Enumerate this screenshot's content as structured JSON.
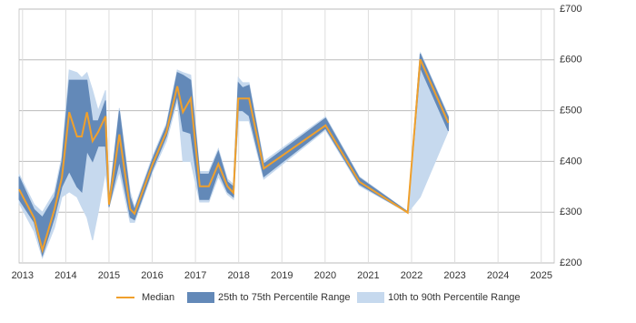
{
  "chart_data": {
    "type": "range-line",
    "x": [
      2012.92,
      2013.27,
      2013.46,
      2013.74,
      2013.91,
      2014.08,
      2014.26,
      2014.37,
      2014.49,
      2014.62,
      2014.75,
      2014.92,
      2015.0,
      2015.24,
      2015.49,
      2015.59,
      2016.01,
      2016.33,
      2016.58,
      2016.71,
      2016.89,
      2017.1,
      2017.31,
      2017.53,
      2017.74,
      2017.88,
      2017.99,
      2018.09,
      2018.24,
      2018.58,
      2020.01,
      2020.79,
      2021.91,
      2022.2,
      2022.85
    ],
    "series": [
      {
        "name": "10th to 90th Percentile Range",
        "color": "#c6d9ee",
        "lower": [
          318,
          262,
          210,
          270,
          330,
          340,
          330,
          310,
          290,
          245,
          300,
          380,
          310,
          380,
          280,
          280,
          380,
          440,
          520,
          400,
          400,
          320,
          320,
          370,
          335,
          325,
          480,
          480,
          480,
          365,
          462,
          352,
          299,
          330,
          460
        ],
        "upper": [
          375,
          315,
          300,
          340,
          410,
          580,
          575,
          565,
          575,
          540,
          500,
          540,
          325,
          505,
          340,
          310,
          410,
          475,
          580,
          575,
          570,
          380,
          380,
          425,
          365,
          355,
          565,
          555,
          555,
          400,
          488,
          370,
          301,
          615,
          490
        ]
      },
      {
        "name": "25th to 75th Percentile Range",
        "color": "#6389b8",
        "lower": [
          325,
          280,
          215,
          290,
          350,
          380,
          350,
          340,
          420,
          400,
          430,
          430,
          310,
          400,
          290,
          285,
          385,
          450,
          530,
          460,
          455,
          325,
          325,
          380,
          340,
          330,
          500,
          500,
          490,
          370,
          465,
          355,
          299,
          585,
          460
        ],
        "upper": [
          370,
          305,
          290,
          330,
          400,
          560,
          560,
          560,
          560,
          480,
          480,
          520,
          320,
          500,
          330,
          305,
          405,
          470,
          575,
          570,
          560,
          375,
          375,
          420,
          360,
          350,
          555,
          545,
          550,
          395,
          485,
          368,
          301,
          612,
          487
        ]
      },
      {
        "name": "Median",
        "color": "#f0a02c",
        "values": [
          345,
          288,
          225,
          306,
          368,
          497,
          449,
          449,
          497,
          440,
          458,
          489,
          315,
          453,
          306,
          297,
          395,
          458,
          548,
          497,
          524,
          351,
          351,
          395,
          351,
          338,
          524,
          524,
          524,
          386,
          471,
          360,
          299,
          601,
          476
        ]
      }
    ],
    "xlim": [
      2012.92,
      2025.3
    ],
    "xticks": [
      2013,
      2014,
      2015,
      2016,
      2017,
      2018,
      2019,
      2020,
      2021,
      2022,
      2023,
      2024,
      2025
    ],
    "ylim": [
      200,
      700
    ],
    "yticks": [
      {
        "value": 200,
        "label": "£200"
      },
      {
        "value": 300,
        "label": "£300"
      },
      {
        "value": 400,
        "label": "£400"
      },
      {
        "value": 500,
        "label": "£500"
      },
      {
        "value": 600,
        "label": "£600"
      },
      {
        "value": 700,
        "label": "£700"
      }
    ],
    "grid": true
  }
}
